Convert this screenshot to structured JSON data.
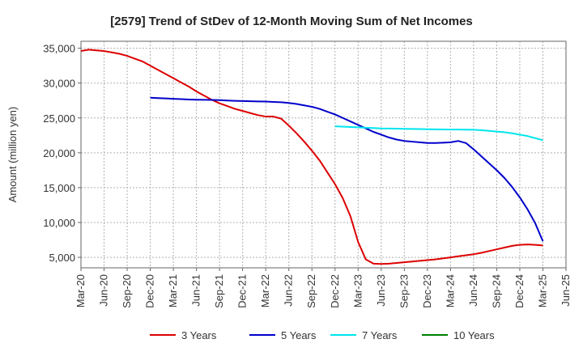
{
  "chart_data": {
    "type": "line",
    "title": "[2579]  Trend of StDev of 12-Month Moving Sum of Net Incomes",
    "xlabel": "",
    "ylabel": "Amount (million yen)",
    "x_tick_labels": [
      "Mar-20",
      "Jun-20",
      "Sep-20",
      "Dec-20",
      "Mar-21",
      "Jun-21",
      "Sep-21",
      "Dec-21",
      "Mar-22",
      "Jun-22",
      "Sep-22",
      "Dec-22",
      "Mar-23",
      "Jun-23",
      "Sep-23",
      "Dec-23",
      "Mar-24",
      "Jun-24",
      "Sep-24",
      "Dec-24",
      "Mar-25",
      "Jun-25"
    ],
    "ylim": [
      3500,
      36000
    ],
    "y_ticks": [
      5000,
      10000,
      15000,
      20000,
      25000,
      30000,
      35000
    ],
    "y_tick_labels": [
      "5,000",
      "10,000",
      "15,000",
      "20,000",
      "25,000",
      "30,000",
      "35,000"
    ],
    "grid": true,
    "legend_position": "bottom",
    "colors": {
      "3 Years": "#dd0000",
      "5 Years": "#0000cc",
      "7 Years": "#00e5ee",
      "10 Years": "#008000"
    },
    "series": [
      {
        "name": "3 Years",
        "x": [
          "2020-03",
          "2020-04",
          "2020-05",
          "2020-06",
          "2020-07",
          "2020-08",
          "2020-09",
          "2020-10",
          "2020-11",
          "2020-12",
          "2021-01",
          "2021-02",
          "2021-03",
          "2021-04",
          "2021-05",
          "2021-06",
          "2021-07",
          "2021-08",
          "2021-09",
          "2021-10",
          "2021-11",
          "2021-12",
          "2022-01",
          "2022-02",
          "2022-03",
          "2022-04",
          "2022-05",
          "2022-06",
          "2022-07",
          "2022-08",
          "2022-09",
          "2022-10",
          "2022-11",
          "2022-12",
          "2023-01",
          "2023-02",
          "2023-03",
          "2023-04",
          "2023-05",
          "2023-06",
          "2023-07",
          "2023-08",
          "2023-09",
          "2023-10",
          "2023-11",
          "2023-12",
          "2024-01",
          "2024-02",
          "2024-03",
          "2024-04",
          "2024-05",
          "2024-06",
          "2024-07",
          "2024-08",
          "2024-09",
          "2024-10",
          "2024-11",
          "2024-12",
          "2025-01",
          "2025-02",
          "2025-03"
        ],
        "values": [
          34600,
          34800,
          34700,
          34600,
          34400,
          34200,
          33900,
          33500,
          33100,
          32500,
          31900,
          31300,
          30700,
          30100,
          29500,
          28800,
          28200,
          27600,
          27100,
          26700,
          26300,
          26000,
          25700,
          25400,
          25200,
          25200,
          24900,
          23900,
          22800,
          21600,
          20300,
          18900,
          17200,
          15500,
          13500,
          10900,
          7200,
          4700,
          4100,
          4050,
          4100,
          4200,
          4300,
          4400,
          4500,
          4600,
          4700,
          4850,
          5000,
          5150,
          5300,
          5450,
          5650,
          5900,
          6150,
          6400,
          6650,
          6800,
          6850,
          6800,
          6700
        ]
      },
      {
        "name": "5 Years",
        "x": [
          "2020-12",
          "2021-01",
          "2021-02",
          "2021-03",
          "2021-04",
          "2021-05",
          "2021-06",
          "2021-07",
          "2021-08",
          "2021-09",
          "2021-10",
          "2021-11",
          "2021-12",
          "2022-01",
          "2022-02",
          "2022-03",
          "2022-04",
          "2022-05",
          "2022-06",
          "2022-07",
          "2022-08",
          "2022-09",
          "2022-10",
          "2022-11",
          "2022-12",
          "2023-01",
          "2023-02",
          "2023-03",
          "2023-04",
          "2023-05",
          "2023-06",
          "2023-07",
          "2023-08",
          "2023-09",
          "2023-10",
          "2023-11",
          "2023-12",
          "2024-01",
          "2024-02",
          "2024-03",
          "2024-04",
          "2024-05",
          "2024-06",
          "2024-07",
          "2024-08",
          "2024-09",
          "2024-10",
          "2024-11",
          "2024-12",
          "2025-01",
          "2025-02",
          "2025-03"
        ],
        "values": [
          27900,
          27850,
          27800,
          27750,
          27700,
          27650,
          27620,
          27600,
          27580,
          27550,
          27500,
          27450,
          27420,
          27400,
          27370,
          27350,
          27300,
          27250,
          27150,
          27000,
          26800,
          26600,
          26300,
          25900,
          25500,
          25000,
          24500,
          24000,
          23500,
          23000,
          22600,
          22200,
          21900,
          21700,
          21600,
          21500,
          21400,
          21400,
          21450,
          21500,
          21700,
          21400,
          20500,
          19500,
          18500,
          17500,
          16400,
          15100,
          13600,
          11900,
          9900,
          7300
        ]
      },
      {
        "name": "7 Years",
        "x": [
          "2022-12",
          "2023-01",
          "2023-02",
          "2023-03",
          "2023-04",
          "2023-05",
          "2023-06",
          "2023-07",
          "2023-08",
          "2023-09",
          "2023-10",
          "2023-11",
          "2023-12",
          "2024-01",
          "2024-02",
          "2024-03",
          "2024-04",
          "2024-05",
          "2024-06",
          "2024-07",
          "2024-08",
          "2024-09",
          "2024-10",
          "2024-11",
          "2024-12",
          "2025-01",
          "2025-02",
          "2025-03"
        ],
        "values": [
          23800,
          23750,
          23700,
          23650,
          23600,
          23550,
          23500,
          23480,
          23460,
          23440,
          23420,
          23400,
          23380,
          23360,
          23350,
          23340,
          23330,
          23320,
          23300,
          23250,
          23150,
          23050,
          22950,
          22800,
          22600,
          22400,
          22100,
          21800
        ]
      },
      {
        "name": "10 Years",
        "x": [],
        "values": []
      }
    ]
  }
}
